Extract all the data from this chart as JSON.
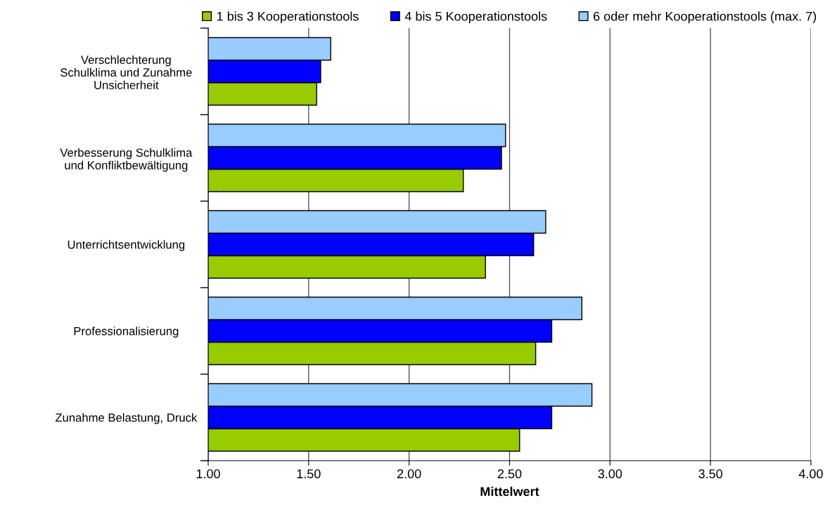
{
  "chart_data": {
    "type": "bar",
    "orientation": "horizontal",
    "xlabel": "Mittelwert",
    "categories": [
      "Verschlechterung\nSchulklima und Zunahme\nUnsicherheit",
      "Verbesserung Schulklima\nund Konfliktbewältigung",
      "Unterrichtsentwicklung",
      "Professionalisierung",
      "Zunahme Belastung, Druck"
    ],
    "series": [
      {
        "name": "1 bis 3 Kooperationstools",
        "color": "#99cc00",
        "values": [
          1.54,
          2.27,
          2.38,
          2.63,
          2.55
        ]
      },
      {
        "name": "4 bis 5 Kooperationstools",
        "color": "#0000ff",
        "values": [
          1.56,
          2.46,
          2.62,
          2.71,
          2.71
        ]
      },
      {
        "name": "6 oder mehr Kooperationstools (max. 7)",
        "color": "#99ccff",
        "values": [
          1.61,
          2.48,
          2.68,
          2.86,
          2.91
        ]
      }
    ],
    "xlim": [
      1,
      4
    ],
    "xticks": [
      {
        "value": 1,
        "label": "1.00"
      },
      {
        "value": 1.5,
        "label": "1.50"
      },
      {
        "value": 2,
        "label": "2.00"
      },
      {
        "value": 2.5,
        "label": "2.50"
      },
      {
        "value": 3,
        "label": "3.00"
      },
      {
        "value": 3.5,
        "label": "3.50"
      },
      {
        "value": 4,
        "label": "4.00"
      }
    ],
    "grid": "x",
    "legend": "top"
  }
}
